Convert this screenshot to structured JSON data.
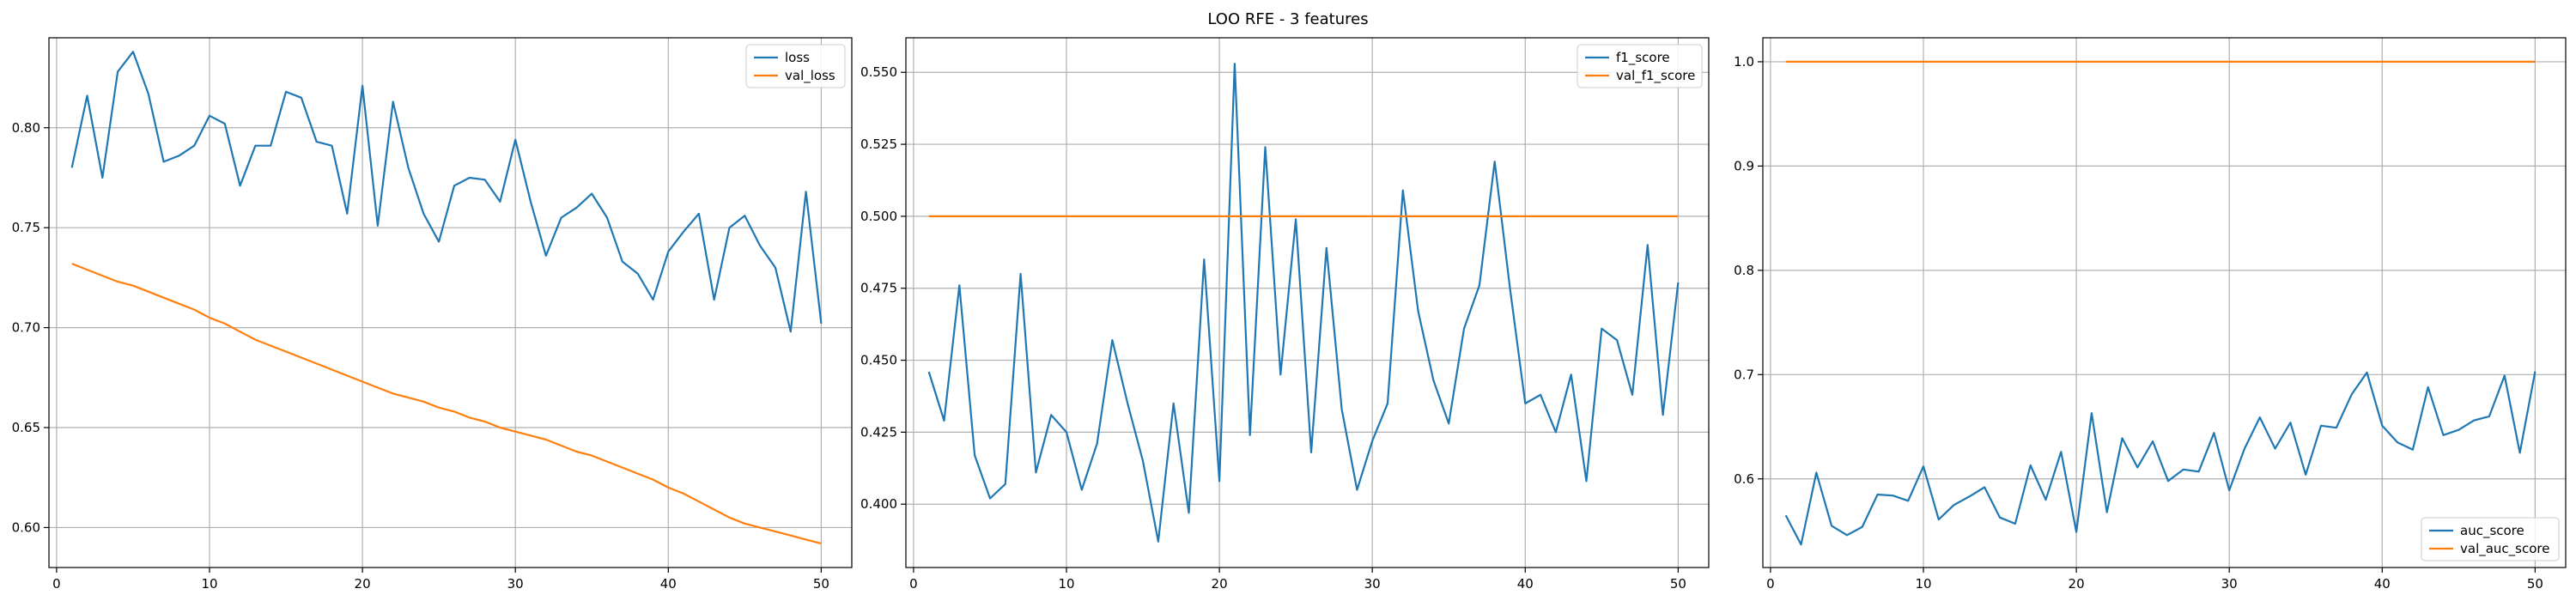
{
  "figure": {
    "title": "LOO RFE - 3 features"
  },
  "colors": {
    "series1": "#1f77b4",
    "series2": "#ff7f0e",
    "grid": "#b0b0b0",
    "axis": "#000000"
  },
  "chart_data": [
    {
      "type": "line",
      "title": "",
      "xlabel": "",
      "ylabel": "",
      "grid": true,
      "legend_position": "upper-right",
      "x": [
        1,
        2,
        3,
        4,
        5,
        6,
        7,
        8,
        9,
        10,
        11,
        12,
        13,
        14,
        15,
        16,
        17,
        18,
        19,
        20,
        21,
        22,
        23,
        24,
        25,
        26,
        27,
        28,
        29,
        30,
        31,
        32,
        33,
        34,
        35,
        36,
        37,
        38,
        39,
        40,
        41,
        42,
        43,
        44,
        45,
        46,
        47,
        48,
        49,
        50
      ],
      "xlim": [
        -0.5,
        52
      ],
      "ylim": [
        0.58,
        0.845
      ],
      "xticks": [
        0,
        10,
        20,
        30,
        40,
        50
      ],
      "yticks": [
        0.6,
        0.65,
        0.7,
        0.75,
        0.8
      ],
      "ytick_labels": [
        "0.60",
        "0.65",
        "0.70",
        "0.75",
        "0.80"
      ],
      "series": [
        {
          "name": "loss",
          "color": "#1f77b4",
          "values": [
            0.78,
            0.816,
            0.775,
            0.828,
            0.838,
            0.817,
            0.783,
            0.786,
            0.791,
            0.806,
            0.802,
            0.771,
            0.791,
            0.791,
            0.818,
            0.815,
            0.793,
            0.791,
            0.757,
            0.821,
            0.751,
            0.813,
            0.78,
            0.757,
            0.743,
            0.771,
            0.775,
            0.774,
            0.763,
            0.794,
            0.763,
            0.736,
            0.755,
            0.76,
            0.767,
            0.755,
            0.733,
            0.727,
            0.714,
            0.738,
            0.748,
            0.757,
            0.714,
            0.75,
            0.756,
            0.741,
            0.73,
            0.698,
            0.768,
            0.702
          ]
        },
        {
          "name": "val_loss",
          "color": "#ff7f0e",
          "values": [
            0.732,
            0.729,
            0.726,
            0.723,
            0.721,
            0.718,
            0.715,
            0.712,
            0.709,
            0.705,
            0.702,
            0.698,
            0.694,
            0.691,
            0.688,
            0.685,
            0.682,
            0.679,
            0.676,
            0.673,
            0.67,
            0.667,
            0.665,
            0.663,
            0.66,
            0.658,
            0.655,
            0.653,
            0.65,
            0.648,
            0.646,
            0.644,
            0.641,
            0.638,
            0.636,
            0.633,
            0.63,
            0.627,
            0.624,
            0.62,
            0.617,
            0.613,
            0.609,
            0.605,
            0.602,
            0.6,
            0.598,
            0.596,
            0.594,
            0.592
          ]
        }
      ]
    },
    {
      "type": "line",
      "title": "",
      "xlabel": "",
      "ylabel": "",
      "grid": true,
      "legend_position": "upper-right",
      "x": [
        1,
        2,
        3,
        4,
        5,
        6,
        7,
        8,
        9,
        10,
        11,
        12,
        13,
        14,
        15,
        16,
        17,
        18,
        19,
        20,
        21,
        22,
        23,
        24,
        25,
        26,
        27,
        28,
        29,
        30,
        31,
        32,
        33,
        34,
        35,
        36,
        37,
        38,
        39,
        40,
        41,
        42,
        43,
        44,
        45,
        46,
        47,
        48,
        49,
        50
      ],
      "xlim": [
        -0.5,
        52
      ],
      "ylim": [
        0.378,
        0.562
      ],
      "xticks": [
        0,
        10,
        20,
        30,
        40,
        50
      ],
      "yticks": [
        0.4,
        0.425,
        0.45,
        0.475,
        0.5,
        0.525,
        0.55
      ],
      "ytick_labels": [
        "0.400",
        "0.425",
        "0.450",
        "0.475",
        "0.500",
        "0.525",
        "0.550"
      ],
      "series": [
        {
          "name": "f1_score",
          "color": "#1f77b4",
          "values": [
            0.446,
            0.429,
            0.476,
            0.417,
            0.402,
            0.407,
            0.48,
            0.411,
            0.431,
            0.425,
            0.405,
            0.421,
            0.457,
            0.435,
            0.415,
            0.387,
            0.435,
            0.397,
            0.485,
            0.408,
            0.553,
            0.424,
            0.524,
            0.445,
            0.499,
            0.418,
            0.489,
            0.433,
            0.405,
            0.422,
            0.435,
            0.509,
            0.467,
            0.443,
            0.428,
            0.461,
            0.476,
            0.519,
            0.475,
            0.435,
            0.438,
            0.425,
            0.445,
            0.408,
            0.461,
            0.457,
            0.438,
            0.49,
            0.431,
            0.477
          ]
        },
        {
          "name": "val_f1_score",
          "color": "#ff7f0e",
          "values": [
            0.5,
            0.5,
            0.5,
            0.5,
            0.5,
            0.5,
            0.5,
            0.5,
            0.5,
            0.5,
            0.5,
            0.5,
            0.5,
            0.5,
            0.5,
            0.5,
            0.5,
            0.5,
            0.5,
            0.5,
            0.5,
            0.5,
            0.5,
            0.5,
            0.5,
            0.5,
            0.5,
            0.5,
            0.5,
            0.5,
            0.5,
            0.5,
            0.5,
            0.5,
            0.5,
            0.5,
            0.5,
            0.5,
            0.5,
            0.5,
            0.5,
            0.5,
            0.5,
            0.5,
            0.5,
            0.5,
            0.5,
            0.5,
            0.5,
            0.5
          ]
        }
      ]
    },
    {
      "type": "line",
      "title": "",
      "xlabel": "",
      "ylabel": "",
      "grid": true,
      "legend_position": "lower-right",
      "x": [
        1,
        2,
        3,
        4,
        5,
        6,
        7,
        8,
        9,
        10,
        11,
        12,
        13,
        14,
        15,
        16,
        17,
        18,
        19,
        20,
        21,
        22,
        23,
        24,
        25,
        26,
        27,
        28,
        29,
        30,
        31,
        32,
        33,
        34,
        35,
        36,
        37,
        38,
        39,
        40,
        41,
        42,
        43,
        44,
        45,
        46,
        47,
        48,
        49,
        50
      ],
      "xlim": [
        -0.5,
        52
      ],
      "ylim": [
        0.515,
        1.023
      ],
      "xticks": [
        0,
        10,
        20,
        30,
        40,
        50
      ],
      "yticks": [
        0.6,
        0.7,
        0.8,
        0.9,
        1.0
      ],
      "ytick_labels": [
        "0.6",
        "0.7",
        "0.8",
        "0.9",
        "1.0"
      ],
      "series": [
        {
          "name": "auc_score",
          "color": "#1f77b4",
          "values": [
            0.565,
            0.537,
            0.606,
            0.555,
            0.546,
            0.554,
            0.585,
            0.584,
            0.579,
            0.612,
            0.561,
            0.575,
            0.583,
            0.592,
            0.563,
            0.557,
            0.613,
            0.58,
            0.626,
            0.549,
            0.663,
            0.568,
            0.639,
            0.611,
            0.636,
            0.598,
            0.609,
            0.607,
            0.644,
            0.589,
            0.629,
            0.659,
            0.629,
            0.654,
            0.604,
            0.651,
            0.649,
            0.681,
            0.702,
            0.651,
            0.635,
            0.628,
            0.688,
            0.642,
            0.647,
            0.656,
            0.66,
            0.699,
            0.625,
            0.703
          ]
        },
        {
          "name": "val_auc_score",
          "color": "#ff7f0e",
          "values": [
            1.0,
            1.0,
            1.0,
            1.0,
            1.0,
            1.0,
            1.0,
            1.0,
            1.0,
            1.0,
            1.0,
            1.0,
            1.0,
            1.0,
            1.0,
            1.0,
            1.0,
            1.0,
            1.0,
            1.0,
            1.0,
            1.0,
            1.0,
            1.0,
            1.0,
            1.0,
            1.0,
            1.0,
            1.0,
            1.0,
            1.0,
            1.0,
            1.0,
            1.0,
            1.0,
            1.0,
            1.0,
            1.0,
            1.0,
            1.0,
            1.0,
            1.0,
            1.0,
            1.0,
            1.0,
            1.0,
            1.0,
            1.0,
            1.0,
            1.0
          ]
        }
      ]
    }
  ]
}
